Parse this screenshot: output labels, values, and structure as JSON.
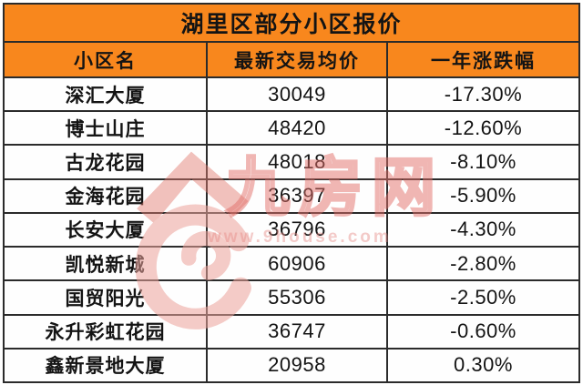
{
  "chart_data": {
    "type": "table",
    "title": "湖里区部分小区报价",
    "columns": [
      "小区名",
      "最新交易均价",
      "一年涨跌幅"
    ],
    "rows": [
      {
        "name": "深汇大厦",
        "price": "30049",
        "change": "-17.30%"
      },
      {
        "name": "博士山庄",
        "price": "48420",
        "change": "-12.60%"
      },
      {
        "name": "古龙花园",
        "price": "48018",
        "change": "-8.10%"
      },
      {
        "name": "金海花园",
        "price": "36397",
        "change": "-5.90%"
      },
      {
        "name": "长安大厦",
        "price": "36796",
        "change": "-4.30%"
      },
      {
        "name": "凯悦新城",
        "price": "60906",
        "change": "-2.80%"
      },
      {
        "name": "国贸阳光",
        "price": "55306",
        "change": "-2.50%"
      },
      {
        "name": "永升彩虹花园",
        "price": "36747",
        "change": "-0.60%"
      },
      {
        "name": "鑫新景地大厦",
        "price": "20958",
        "change": "0.30%"
      }
    ]
  },
  "watermark": {
    "brand": "九房网",
    "url": "www.9house.com"
  },
  "colors": {
    "header_bg": "#F8871D",
    "border": "#2B2B2B",
    "text": "#141414",
    "cell_bg": "#FEFEFE",
    "wm_pink": "#E8938C"
  }
}
